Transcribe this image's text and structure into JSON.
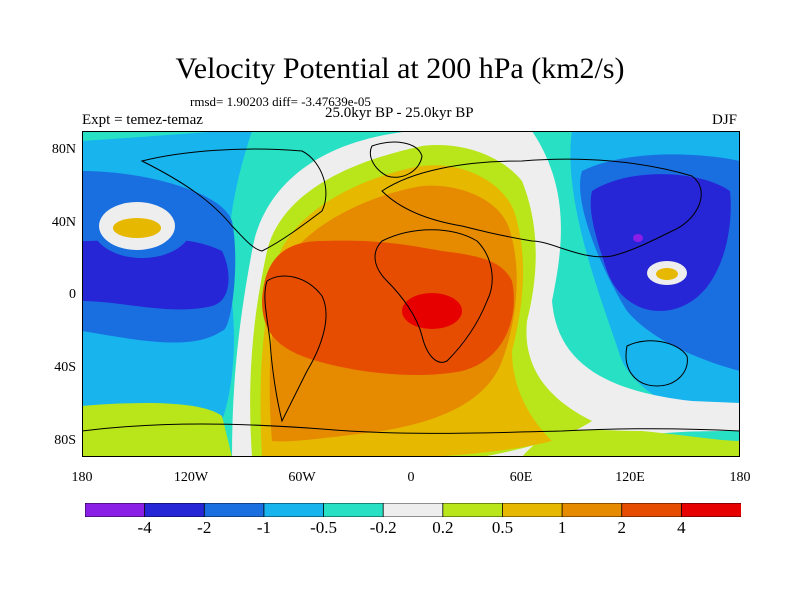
{
  "title": "Velocity Potential at 200 hPa (km2/s)",
  "stats": "rmsd= 1.90203  diff= -3.47639e-05",
  "left_label": "Expt = temez-temaz",
  "center_label": "25.0kyr BP - 25.0kyr BP",
  "right_label": "DJF",
  "map": {
    "projection": "cylindrical equidistant",
    "lat_ticks": [
      "80N",
      "40N",
      "0",
      "40S",
      "80S"
    ],
    "lon_ticks": [
      "180",
      "120W",
      "60W",
      "0",
      "60E",
      "120E",
      "180"
    ]
  },
  "colorbar": {
    "labels": [
      "-4",
      "-2",
      "-1",
      "-0.5",
      "-0.2",
      "0.2",
      "0.5",
      "1",
      "2",
      "4"
    ],
    "colors": [
      "#8a1ee6",
      "#2626d6",
      "#1a6fe0",
      "#18b4ee",
      "#28e0c4",
      "#eeeeee",
      "#b8e61a",
      "#e6b800",
      "#e68a00",
      "#e64d00",
      "#e60000"
    ]
  }
}
